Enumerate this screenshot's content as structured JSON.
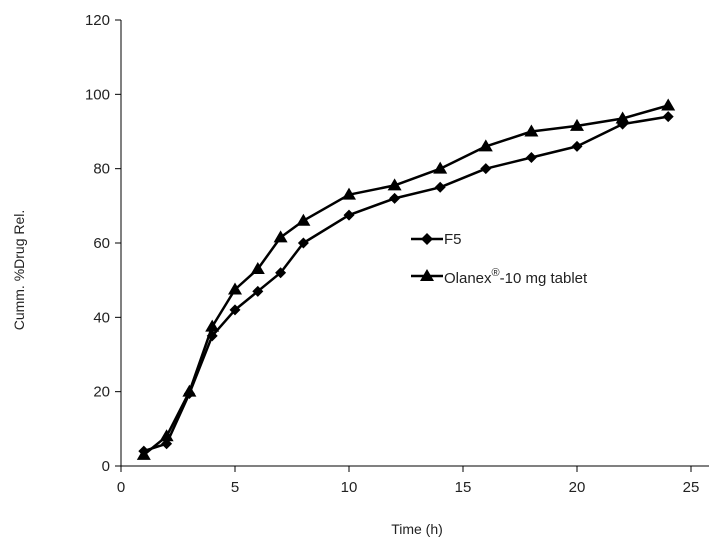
{
  "chart_data": {
    "type": "line",
    "xlabel": "Time (h)",
    "ylabel": "Cumm. %Drug Rel.",
    "xlim": [
      0,
      25
    ],
    "ylim": [
      0,
      120
    ],
    "xticks": [
      0,
      5,
      10,
      15,
      20,
      25
    ],
    "yticks": [
      0,
      20,
      40,
      60,
      80,
      100,
      120
    ],
    "grid": false,
    "legend_position": "center-right",
    "series": [
      {
        "name": "F5",
        "marker": "diamond",
        "color": "#000000",
        "x": [
          1,
          2,
          3,
          4,
          5,
          6,
          7,
          8,
          10,
          12,
          14,
          16,
          18,
          20,
          22,
          24
        ],
        "y": [
          4,
          6,
          19.5,
          35,
          42,
          47,
          52,
          60,
          67.5,
          72,
          75,
          80,
          83,
          86,
          92,
          94
        ]
      },
      {
        "name": "Olanex®-10 mg tablet",
        "name_base": "Olanex",
        "name_sup": "®",
        "name_rest": "-10 mg tablet",
        "marker": "triangle",
        "color": "#000000",
        "x": [
          1,
          2,
          3,
          4,
          5,
          6,
          7,
          8,
          10,
          12,
          14,
          16,
          18,
          20,
          22,
          24
        ],
        "y": [
          3,
          8,
          20,
          37.5,
          47.5,
          53,
          61.5,
          66,
          73,
          75.5,
          80,
          86,
          90,
          91.5,
          93.5,
          97
        ]
      }
    ]
  }
}
